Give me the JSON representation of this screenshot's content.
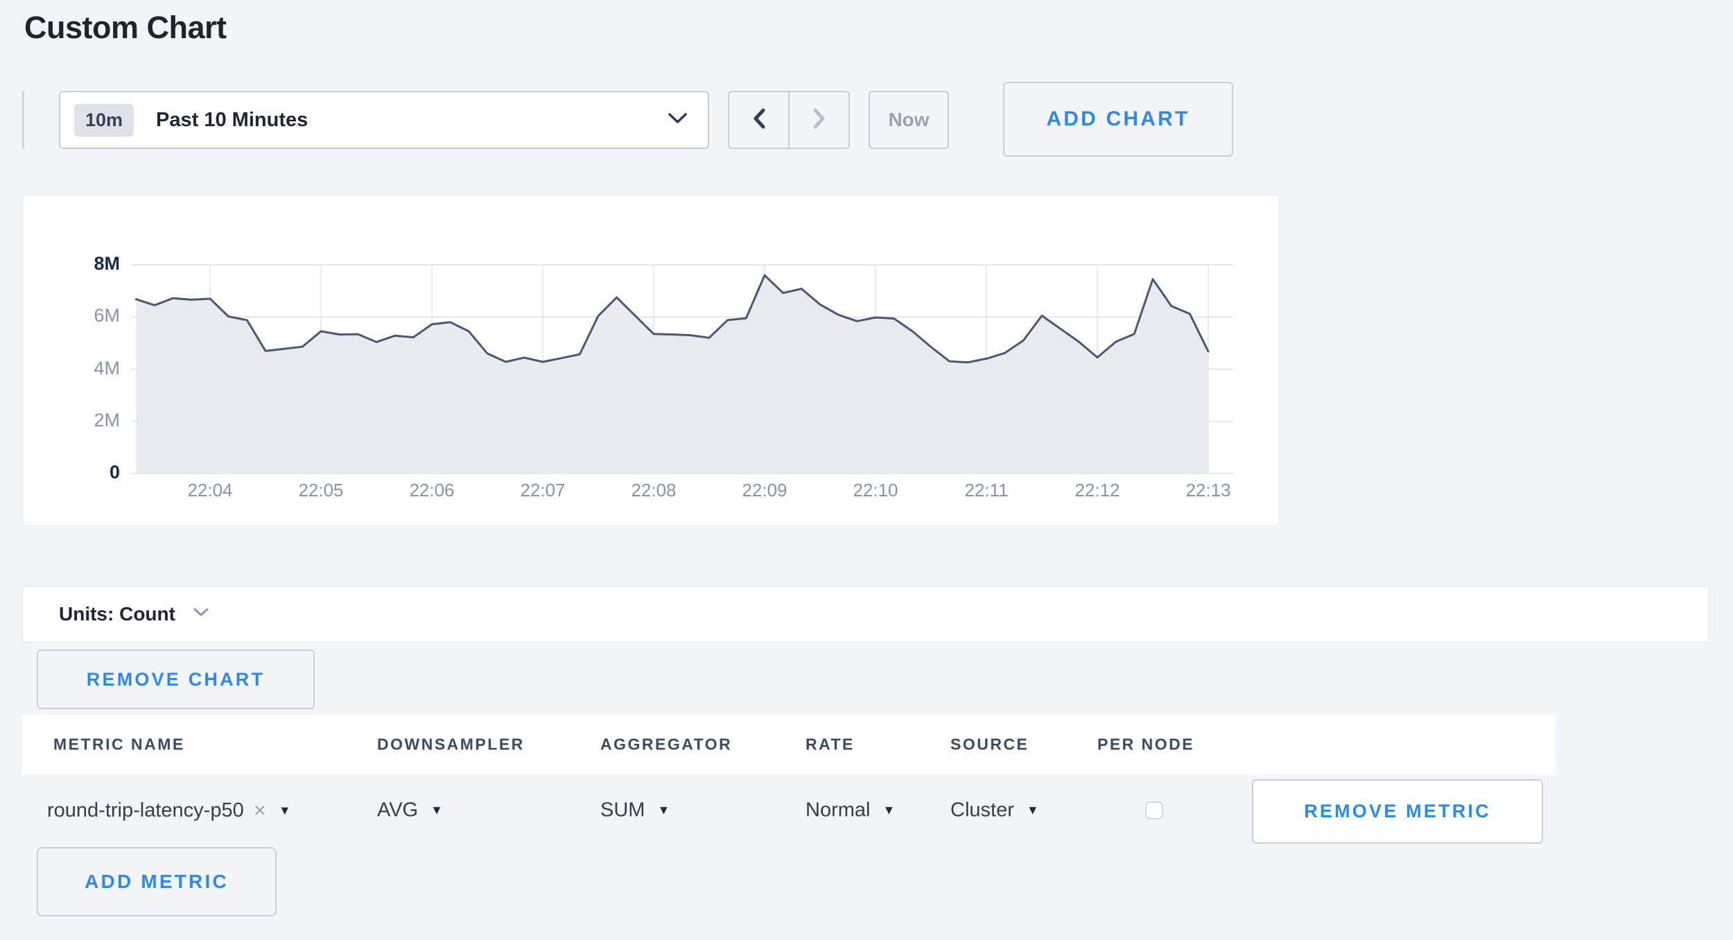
{
  "page": {
    "title": "Custom Chart",
    "background": "#f4f5f9",
    "accent_blue": "#2b8af2"
  },
  "toolbar": {
    "time_range": {
      "badge": "10m",
      "label": "Past 10 Minutes"
    },
    "now_label": "Now",
    "add_chart_label": "ADD CHART"
  },
  "chart_data": {
    "type": "area",
    "series_name": "round-trip-latency-p50 (SUM of AVG, Cluster)",
    "units": "Count",
    "x_start_time": "22:03:20",
    "interval_seconds": 10,
    "x_tick_labels": [
      "22:04",
      "22:05",
      "22:06",
      "22:07",
      "22:08",
      "22:09",
      "22:10",
      "22:11",
      "22:12",
      "22:13"
    ],
    "y_tick_labels": [
      "0",
      "2M",
      "4M",
      "6M",
      "8M"
    ],
    "ylim": [
      0,
      8000000
    ],
    "grid": true,
    "legend": "none",
    "line_color": "#4a5874",
    "fill_color": "#e9ebf1",
    "values_millions": [
      6.68,
      6.45,
      6.72,
      6.66,
      6.7,
      6.02,
      5.88,
      4.7,
      4.78,
      4.86,
      5.45,
      5.33,
      5.34,
      5.04,
      5.28,
      5.22,
      5.72,
      5.8,
      5.45,
      4.6,
      4.28,
      4.44,
      4.28,
      4.42,
      4.57,
      6.04,
      6.75,
      6.05,
      5.35,
      5.33,
      5.3,
      5.2,
      5.88,
      5.95,
      7.6,
      6.92,
      7.08,
      6.48,
      6.08,
      5.84,
      5.98,
      5.94,
      5.45,
      4.85,
      4.3,
      4.26,
      4.4,
      4.62,
      5.1,
      6.05,
      5.55,
      5.05,
      4.45,
      5.05,
      5.35,
      7.45,
      6.42,
      6.12,
      4.68
    ]
  },
  "units_bar": {
    "label": "Units: Count"
  },
  "remove_chart_label": "REMOVE CHART",
  "metrics_table": {
    "headers": [
      "METRIC NAME",
      "DOWNSAMPLER",
      "AGGREGATOR",
      "RATE",
      "SOURCE",
      "PER NODE"
    ],
    "rows": [
      {
        "metric_name": "round-trip-latency-p50",
        "remove_tag_icon": "×",
        "downsampler": "AVG",
        "aggregator": "SUM",
        "rate": "Normal",
        "source": "Cluster",
        "per_node_checked": false,
        "remove_label": "REMOVE METRIC"
      }
    ]
  },
  "add_metric_label": "ADD METRIC"
}
